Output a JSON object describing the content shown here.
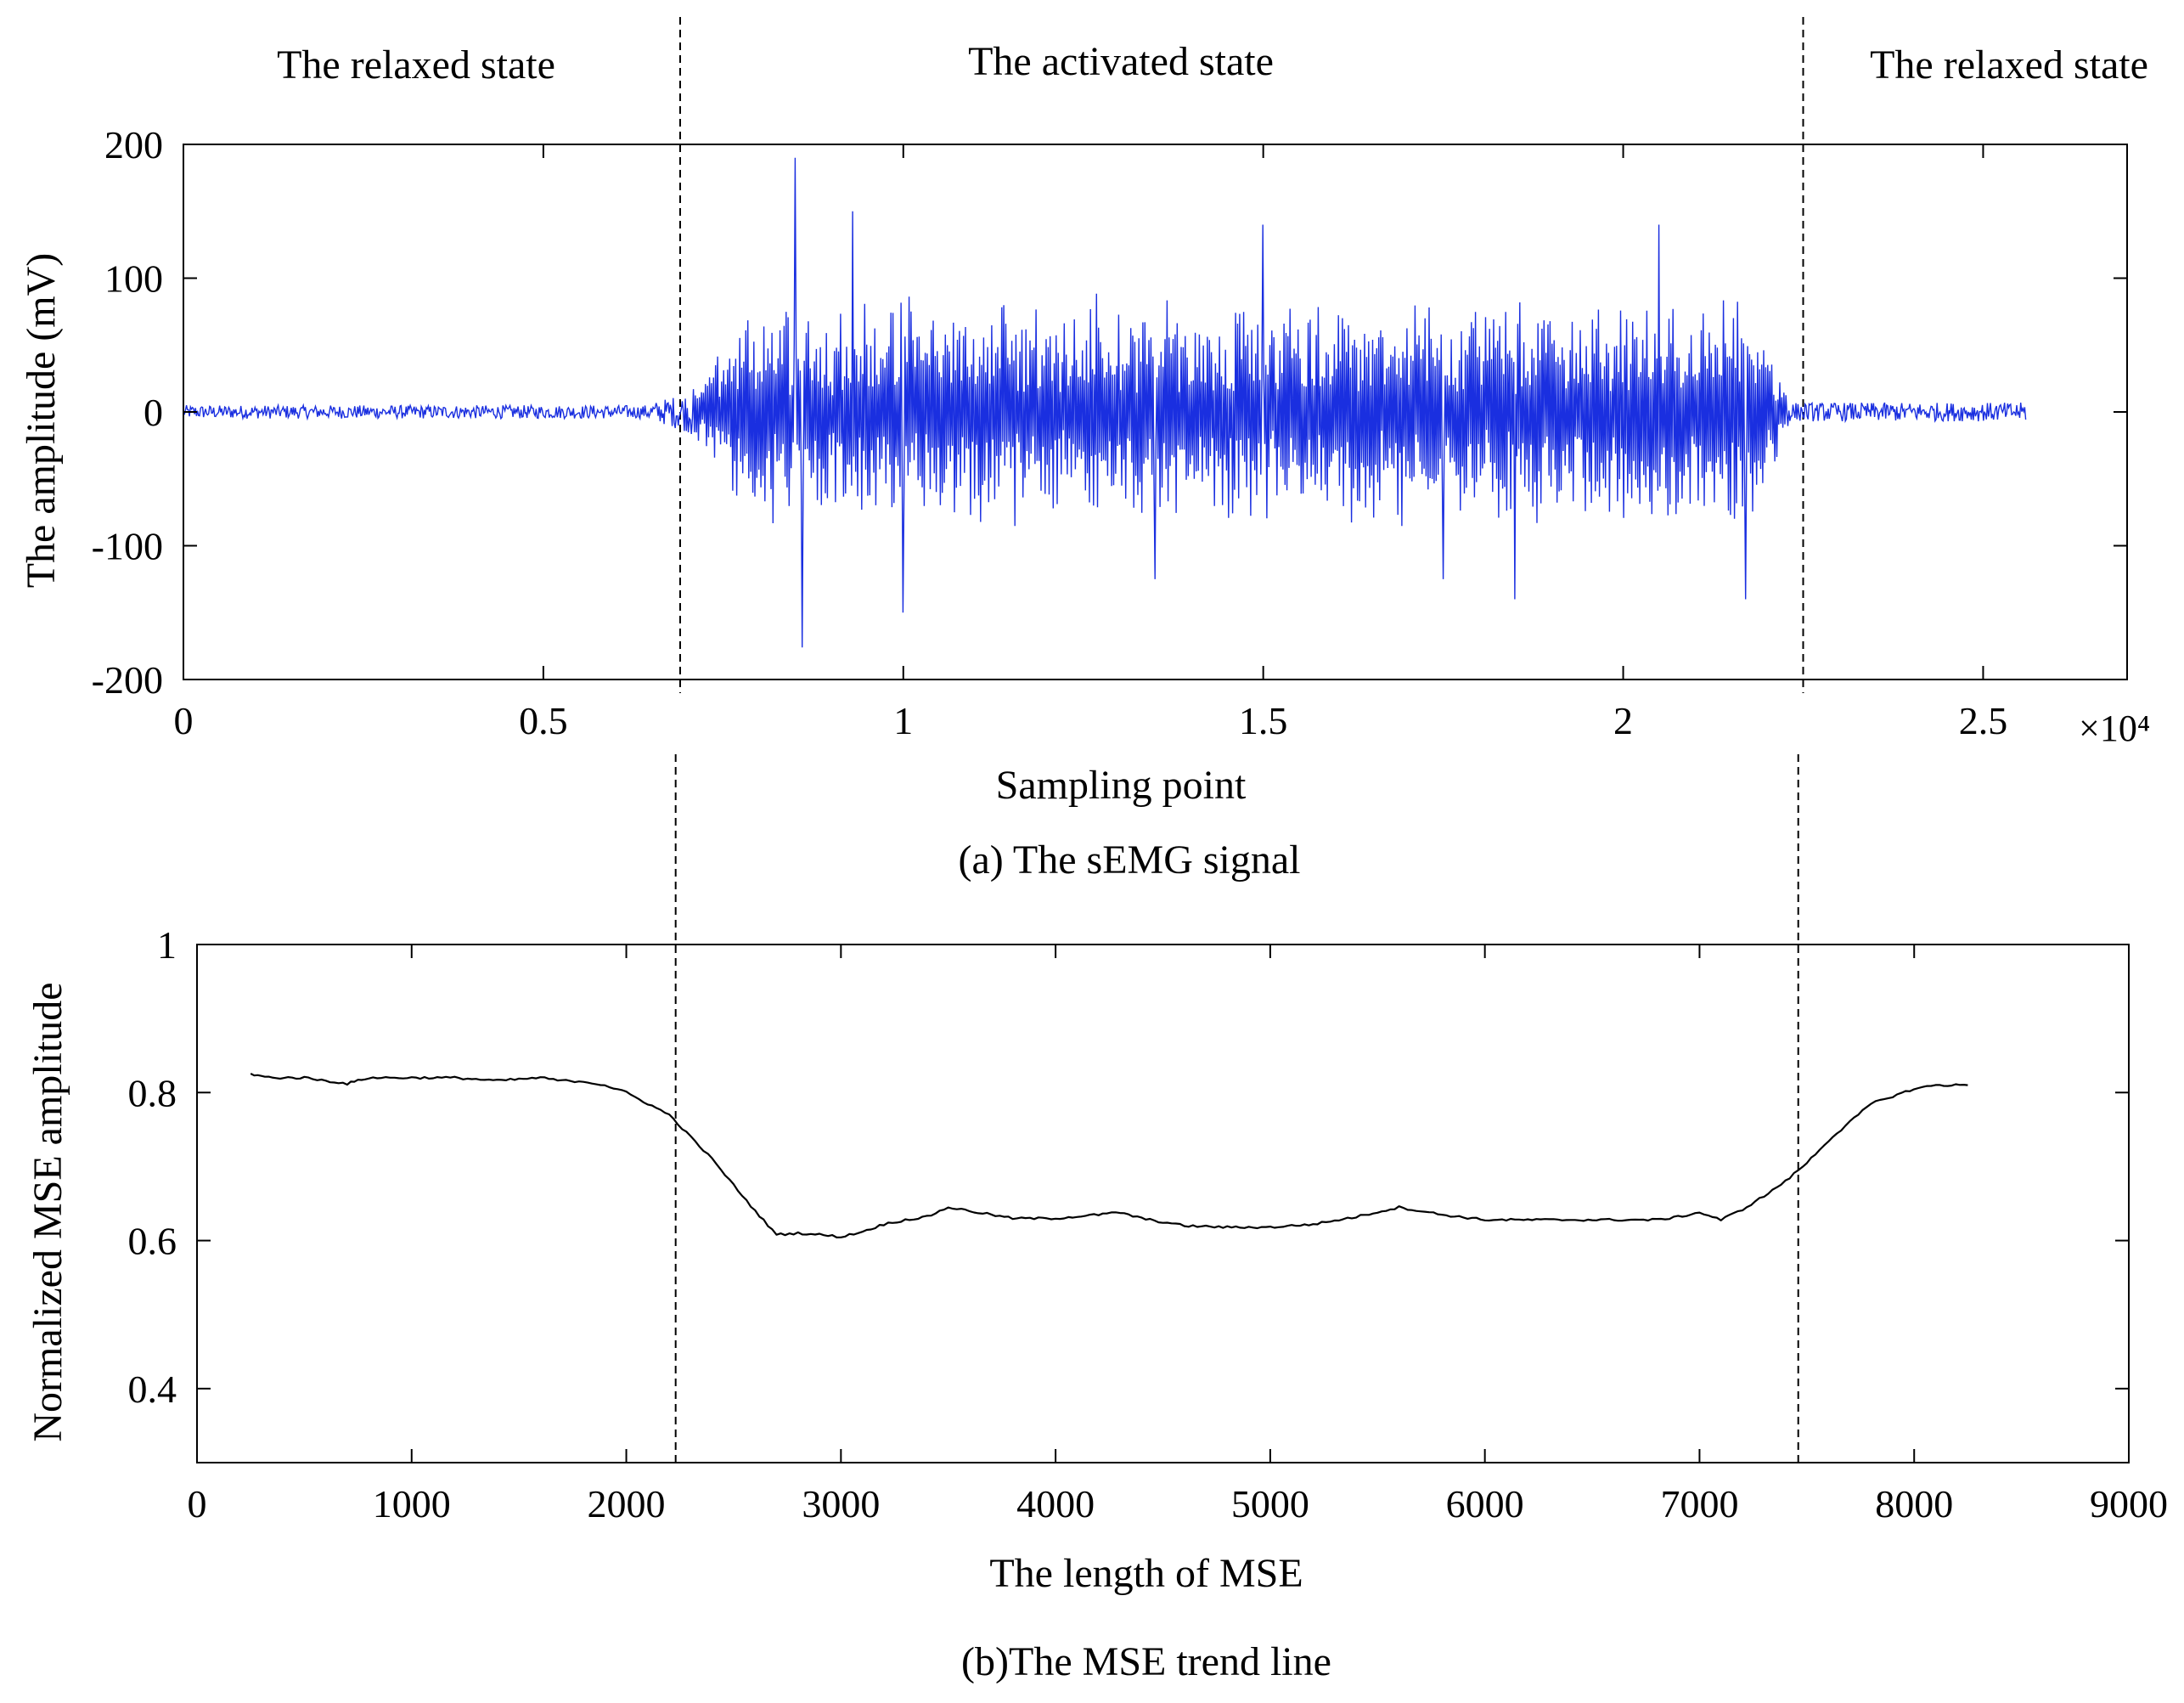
{
  "state_labels": {
    "left": "The relaxed state",
    "middle": "The activated state",
    "right": "The relaxed state"
  },
  "dividers": {
    "sampling_point": [
      6900,
      22500
    ],
    "mse_length": [
      2230,
      7460
    ]
  },
  "colors": {
    "semg_line": "#1a2fe0",
    "mse_line": "#000000",
    "axes": "#000000"
  },
  "chart_data": [
    {
      "type": "line",
      "id": "semg",
      "caption": "(a) The sEMG signal",
      "title": "",
      "xlabel": "Sampling point",
      "ylabel": "The amplitude (mV)",
      "xlim": [
        0,
        27000
      ],
      "ylim": [
        -200,
        200
      ],
      "x_ticks": [
        0,
        5000,
        10000,
        15000,
        20000,
        25000
      ],
      "x_tick_labels": [
        "0",
        "0.5",
        "1",
        "1.5",
        "2",
        "2.5"
      ],
      "x_exponent_label": "×10⁴",
      "y_ticks": [
        200,
        100,
        0,
        -100,
        -200
      ],
      "y_tick_labels": [
        "200",
        "100",
        "0",
        "-100",
        "-200"
      ],
      "grid": false,
      "signal": {
        "x_start": 0,
        "x_end": 25600,
        "relaxed_amplitude": 5,
        "activation_start": 7000,
        "activation_end": 22300,
        "peak_envelope": 90,
        "max_value": 196,
        "min_value": -176
      },
      "series": [
        {
          "name": "sEMG",
          "x": [
            7000,
            8500,
            8600,
            9300,
            10000,
            13500,
            15000,
            17500,
            18500,
            20500,
            21700,
            22300,
            25600
          ],
          "values": [
            8,
            190,
            -176,
            150,
            -150,
            -125,
            140,
            -125,
            -140,
            140,
            -140,
            8,
            3
          ]
        }
      ]
    },
    {
      "type": "line",
      "id": "mse",
      "caption": "(b)The MSE trend line",
      "title": "",
      "xlabel": "The length of MSE",
      "ylabel": "Normalized MSE amplitude",
      "xlim": [
        0,
        9000
      ],
      "ylim": [
        0.3,
        1.0
      ],
      "x_ticks": [
        0,
        1000,
        2000,
        3000,
        4000,
        5000,
        6000,
        7000,
        8000,
        9000
      ],
      "x_tick_labels": [
        "0",
        "1000",
        "2000",
        "3000",
        "4000",
        "5000",
        "6000",
        "7000",
        "8000",
        "9000"
      ],
      "y_ticks": [
        1.0,
        0.8,
        0.6,
        0.4
      ],
      "y_tick_labels": [
        "1",
        "0.8",
        "0.6",
        "0.4"
      ],
      "grid": false,
      "series": [
        {
          "name": "MSE trend",
          "x": [
            250,
            300,
            350,
            500,
            700,
            750,
            800,
            1000,
            1200,
            1400,
            1600,
            1700,
            1800,
            1900,
            2000,
            2100,
            2200,
            2300,
            2400,
            2500,
            2600,
            2700,
            2800,
            2900,
            3000,
            3100,
            3200,
            3300,
            3400,
            3500,
            3600,
            3800,
            4000,
            4200,
            4300,
            4400,
            4600,
            4800,
            5000,
            5200,
            5400,
            5600,
            5700,
            5800,
            6000,
            6200,
            6400,
            6600,
            6800,
            6900,
            7000,
            7100,
            7200,
            7300,
            7400,
            7500,
            7600,
            7700,
            7800,
            7900,
            8000,
            8100,
            8250
          ],
          "values": [
            0.825,
            0.822,
            0.82,
            0.82,
            0.812,
            0.816,
            0.82,
            0.82,
            0.82,
            0.816,
            0.82,
            0.816,
            0.815,
            0.81,
            0.8,
            0.785,
            0.77,
            0.74,
            0.71,
            0.675,
            0.64,
            0.608,
            0.61,
            0.608,
            0.605,
            0.612,
            0.622,
            0.628,
            0.632,
            0.645,
            0.64,
            0.63,
            0.63,
            0.635,
            0.638,
            0.63,
            0.62,
            0.618,
            0.618,
            0.622,
            0.632,
            0.645,
            0.64,
            0.635,
            0.628,
            0.628,
            0.628,
            0.628,
            0.628,
            0.632,
            0.638,
            0.628,
            0.642,
            0.66,
            0.68,
            0.705,
            0.735,
            0.76,
            0.785,
            0.795,
            0.805,
            0.81,
            0.81
          ]
        }
      ]
    }
  ]
}
